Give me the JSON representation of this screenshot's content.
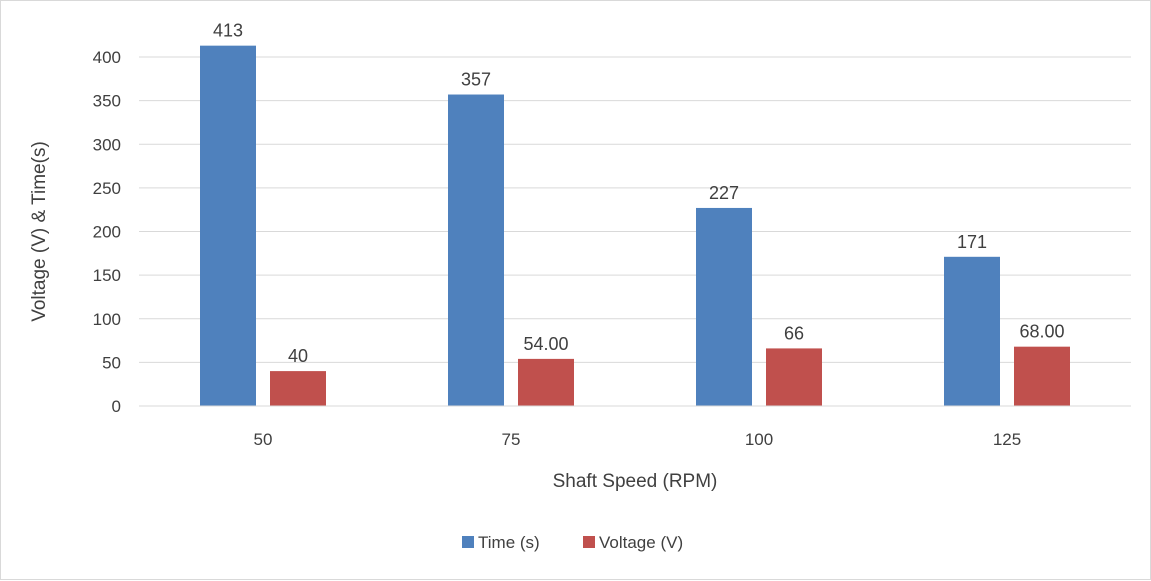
{
  "chart_data": {
    "type": "bar",
    "title": "",
    "xlabel": "Shaft Speed (RPM)",
    "ylabel": "Voltage (V) & Time(s)",
    "categories": [
      "50",
      "75",
      "100",
      "125"
    ],
    "ylim": [
      0,
      400
    ],
    "yticks": [
      0,
      50,
      100,
      150,
      200,
      250,
      300,
      350,
      400
    ],
    "grid": true,
    "legend_position": "bottom",
    "series": [
      {
        "name": "Time (s)",
        "color": "#4f81bd",
        "values": [
          413,
          357,
          227,
          171
        ],
        "labels": [
          "413",
          "357",
          "227",
          "171"
        ]
      },
      {
        "name": "Voltage (V)",
        "color": "#c0504d",
        "values": [
          40,
          54,
          66,
          68
        ],
        "labels": [
          "40",
          "54.00",
          "66",
          "68.00"
        ]
      }
    ]
  }
}
